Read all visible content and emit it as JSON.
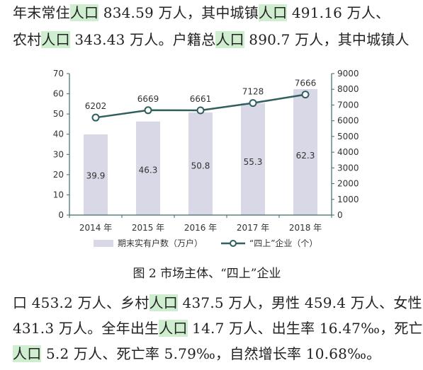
{
  "paragraph_top": {
    "line1": [
      {
        "t": "年末常住",
        "h": false
      },
      {
        "t": "人口",
        "h": true
      },
      {
        "t": " 834.59 万人，其中城镇",
        "h": false
      },
      {
        "t": "人口",
        "h": true
      },
      {
        "t": " 491.16 万人、",
        "h": false
      }
    ],
    "line2": [
      {
        "t": "农村",
        "h": false
      },
      {
        "t": "人口",
        "h": true
      },
      {
        "t": " 343.43 万人。户籍总",
        "h": false
      },
      {
        "t": "人口",
        "h": true
      },
      {
        "t": " 890.7 万人，其中城镇人",
        "h": false
      }
    ]
  },
  "caption": "图 2 市场主体、“四上”企业",
  "paragraph_bottom": {
    "line1": [
      {
        "t": "口 453.2 万人、乡村",
        "h": false
      },
      {
        "t": "人口",
        "h": true
      },
      {
        "t": " 437.5 万人，男性 459.4 万人、女性",
        "h": false
      }
    ],
    "line2": [
      {
        "t": "431.3 万人。全年出生",
        "h": false
      },
      {
        "t": "人口",
        "h": true
      },
      {
        "t": " 14.7 万人、出生率 16.47‰，死亡",
        "h": false
      }
    ],
    "line3": [
      {
        "t": "人口",
        "h": true
      },
      {
        "t": " 5.2 万人、死亡率 5.79‰，自然增长率 10.68‰。",
        "h": false
      }
    ]
  },
  "chart_data": {
    "type": "bar",
    "categories": [
      "2014 年",
      "2015 年",
      "2016 年",
      "2017 年",
      "2018 年"
    ],
    "series": [
      {
        "name": "期末实有户数（万户）",
        "kind": "bar",
        "axis": "left",
        "values": [
          39.9,
          46.3,
          50.8,
          55.3,
          62.3
        ],
        "color": "#d9d8e6"
      },
      {
        "name": "“四上”企业（个）",
        "kind": "line",
        "axis": "right",
        "values": [
          6202,
          6669,
          6661,
          7128,
          7666
        ],
        "color": "#2f5f5f"
      }
    ],
    "y_left": {
      "min": 0,
      "max": 70,
      "ticks": [
        "0",
        "10",
        "20",
        "30",
        "40",
        "50",
        "60",
        "70"
      ]
    },
    "y_right": {
      "min": 0,
      "max": 9000,
      "ticks": [
        "0",
        "1000",
        "2000",
        "3000",
        "4000",
        "5000",
        "6000",
        "7000",
        "8000",
        "9000"
      ]
    },
    "legend_placement": "bottom",
    "grid": false,
    "axis_color": "#3a6a6a"
  }
}
